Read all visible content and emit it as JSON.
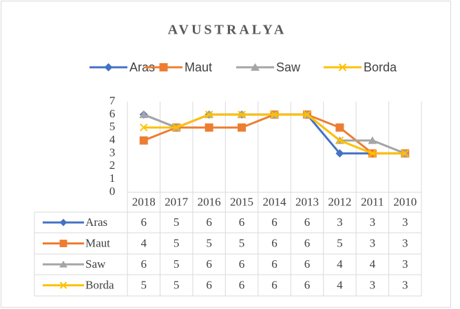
{
  "chart_data": {
    "type": "line",
    "title": "AVUSTRALYA",
    "categories": [
      "2018",
      "2017",
      "2016",
      "2015",
      "2014",
      "2013",
      "2012",
      "2011",
      "2010"
    ],
    "series": [
      {
        "name": "Aras",
        "color": "#4472c4",
        "marker": "diamond",
        "values": [
          6,
          5,
          6,
          6,
          6,
          6,
          3,
          3,
          3
        ]
      },
      {
        "name": "Maut",
        "color": "#ed7d31",
        "marker": "square",
        "values": [
          4,
          5,
          5,
          5,
          6,
          6,
          5,
          3,
          3
        ]
      },
      {
        "name": "Saw",
        "color": "#a5a5a5",
        "marker": "triangle",
        "values": [
          6,
          5,
          6,
          6,
          6,
          6,
          4,
          4,
          3
        ]
      },
      {
        "name": "Borda",
        "color": "#ffc000",
        "marker": "x",
        "values": [
          5,
          5,
          6,
          6,
          6,
          6,
          4,
          3,
          3
        ]
      }
    ],
    "ylim": [
      0,
      7
    ],
    "yticks": [
      0,
      1,
      2,
      3,
      4,
      5,
      6,
      7
    ],
    "legend": "top",
    "data_table": true
  }
}
